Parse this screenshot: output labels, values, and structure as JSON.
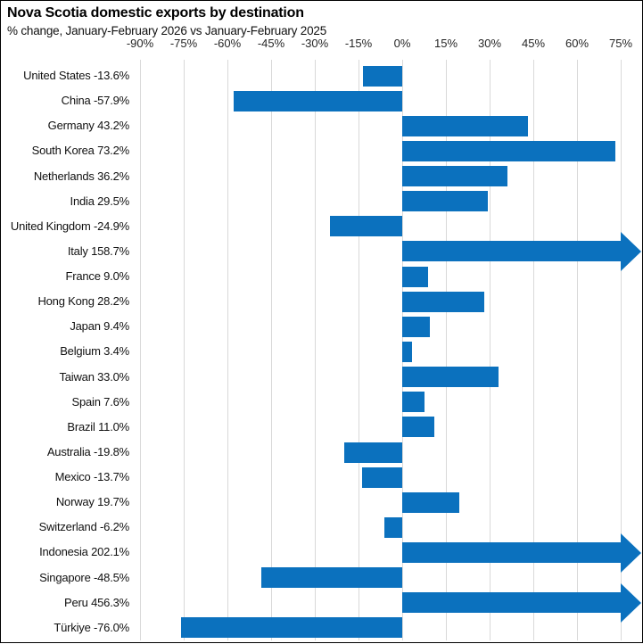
{
  "header": {
    "title": "Nova Scotia domestic exports by destination",
    "subtitle": "% change, January-February 2026 vs January-February 2025"
  },
  "colors": {
    "bar": "#0b71be",
    "gridline": "#d9d9d9",
    "border": "#000000",
    "text": "#111111",
    "tick_text": "#262626"
  },
  "chart_data": {
    "type": "bar",
    "orientation": "horizontal",
    "title": "Nova Scotia domestic exports by destination",
    "subtitle": "% change, January-February 2026 vs January-February 2025",
    "value_unit": "%",
    "categories": [
      "United States",
      "China",
      "Germany",
      "South Korea",
      "Netherlands",
      "India",
      "United Kingdom",
      "Italy",
      "France",
      "Hong Kong",
      "Japan",
      "Belgium",
      "Taiwan",
      "Spain",
      "Brazil",
      "Australia",
      "Mexico",
      "Norway",
      "Switzerland",
      "Indonesia",
      "Singapore",
      "Peru",
      "Türkiye"
    ],
    "values": [
      -13.6,
      -57.9,
      43.2,
      73.2,
      36.2,
      29.5,
      -24.9,
      158.7,
      9.0,
      28.2,
      9.4,
      3.4,
      33.0,
      7.6,
      11.0,
      -19.8,
      -13.7,
      19.7,
      -6.2,
      202.1,
      -48.5,
      456.3,
      -76.0
    ],
    "row_labels": [
      "United States -13.6%",
      "China -57.9%",
      "Germany 43.2%",
      "South Korea 73.2%",
      "Netherlands 36.2%",
      "India 29.5%",
      "United Kingdom -24.9%",
      "Italy 158.7%",
      "France 9.0%",
      "Hong Kong 28.2%",
      "Japan 9.4%",
      "Belgium 3.4%",
      "Taiwan 33.0%",
      "Spain 7.6%",
      "Brazil 11.0%",
      "Australia -19.8%",
      "Mexico -13.7%",
      "Norway 19.7%",
      "Switzerland -6.2%",
      "Indonesia 202.1%",
      "Singapore -48.5%",
      "Peru 456.3%",
      "Türkiye -76.0%"
    ],
    "x_tick_labels": [
      "-90%",
      "-75%",
      "-60%",
      "-45%",
      "-30%",
      "-15%",
      "0%",
      "15%",
      "30%",
      "45%",
      "60%",
      "75%"
    ],
    "x_tick_values": [
      -90,
      -75,
      -60,
      -45,
      -30,
      -15,
      0,
      15,
      30,
      45,
      60,
      75
    ],
    "xlim": [
      -90,
      75
    ],
    "gridlines": true,
    "legend_position": "none",
    "overflow_rendering": "arrow",
    "overflow_categories": [
      "Italy",
      "Indonesia",
      "Peru"
    ],
    "bar_color": "#0b71be"
  }
}
